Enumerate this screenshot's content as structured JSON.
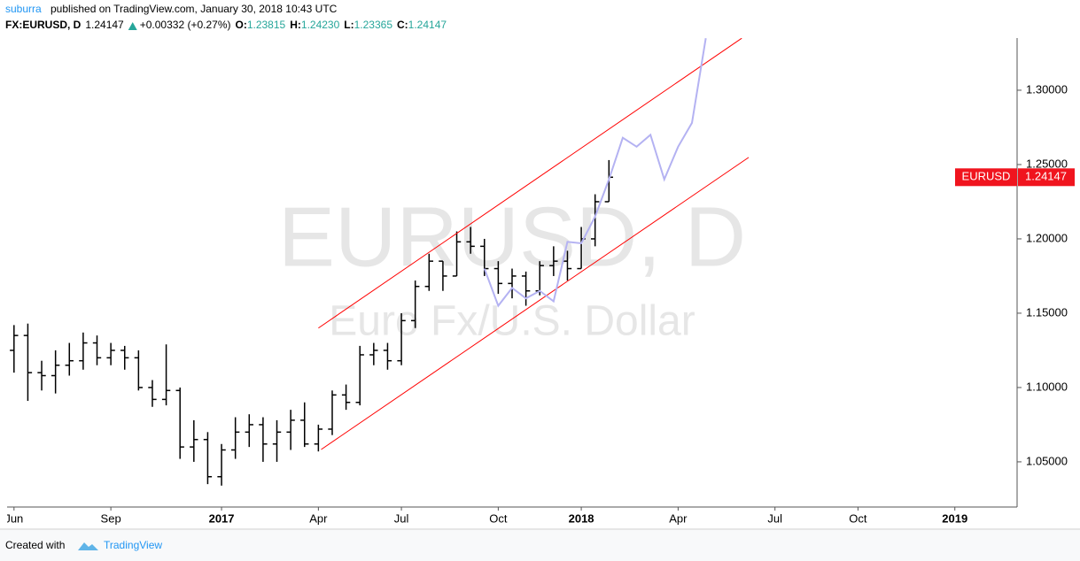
{
  "header": {
    "author": "suburra",
    "published": "published on TradingView.com, January 30, 2018 10:43 UTC",
    "symbol": "FX:EURUSD, D",
    "price": "1.24147",
    "change": "+0.00332 (+0.27%)",
    "ohlc": [
      {
        "label": "O:",
        "value": "1.23815"
      },
      {
        "label": "H:",
        "value": "1.24230"
      },
      {
        "label": "L:",
        "value": "1.23365"
      },
      {
        "label": "C:",
        "value": "1.24147"
      }
    ]
  },
  "footer": {
    "created": "Created with",
    "brand": "TradingView"
  },
  "chart_data": {
    "type": "ohlc",
    "watermark_title": "EURUSD, D",
    "watermark_subtitle": "Euro Fx/U.S. Dollar",
    "symbol_label": "EURUSD",
    "last_price": {
      "value": 1.24147,
      "label": "1.24147"
    },
    "tag_color": "#f0141e",
    "color": "#000000",
    "categories": [
      "Jun",
      null,
      null,
      null,
      null,
      null,
      null,
      "Sep",
      null,
      null,
      null,
      null,
      null,
      null,
      null,
      "2017",
      null,
      null,
      null,
      null,
      null,
      null,
      "Apr",
      null,
      null,
      null,
      null,
      null,
      "Jul",
      null,
      null,
      null,
      null,
      null,
      null,
      "Oct",
      null,
      null,
      null,
      null,
      null,
      "2018",
      null,
      null,
      null,
      null,
      null,
      null,
      "Apr",
      null,
      null,
      null,
      null,
      null,
      null,
      "Jul",
      null,
      null,
      null,
      null,
      null,
      "Oct",
      null,
      null,
      null,
      null,
      null,
      null,
      "2019",
      null,
      null,
      null,
      null
    ],
    "open": [
      1.125,
      1.135,
      1.11,
      1.108,
      1.115,
      1.118,
      1.13,
      1.12,
      1.125,
      1.12,
      1.1,
      1.092,
      1.098,
      1.06,
      1.065,
      1.04,
      1.058,
      1.07,
      1.075,
      1.062,
      1.07,
      1.078,
      1.062,
      1.072,
      1.095,
      1.09,
      1.122,
      1.125,
      1.118,
      1.145,
      1.168,
      1.185,
      1.175,
      1.198,
      1.195,
      1.18,
      1.17,
      1.175,
      1.165,
      1.182,
      1.185,
      1.18,
      1.2,
      1.225,
      null,
      null,
      null,
      null,
      null,
      null,
      null,
      null,
      null,
      null,
      null,
      null,
      null,
      null,
      null,
      null,
      null,
      null,
      null,
      null,
      null,
      null,
      null,
      null,
      null,
      null,
      null,
      null,
      null
    ],
    "high": [
      1.142,
      1.143,
      1.118,
      1.125,
      1.13,
      1.137,
      1.135,
      1.13,
      1.128,
      1.125,
      1.105,
      1.129,
      1.1,
      1.078,
      1.07,
      1.062,
      1.08,
      1.082,
      1.08,
      1.078,
      1.085,
      1.09,
      1.075,
      1.098,
      1.102,
      1.128,
      1.13,
      1.13,
      1.15,
      1.172,
      1.19,
      1.185,
      1.205,
      1.208,
      1.2,
      1.185,
      1.18,
      1.178,
      1.185,
      1.195,
      1.192,
      1.208,
      1.23,
      1.253,
      null,
      null,
      null,
      null,
      null,
      null,
      null,
      null,
      null,
      null,
      null,
      null,
      null,
      null,
      null,
      null,
      null,
      null,
      null,
      null,
      null,
      null,
      null,
      null,
      null,
      null,
      null,
      null,
      null
    ],
    "low": [
      1.11,
      1.091,
      1.098,
      1.096,
      1.108,
      1.112,
      1.115,
      1.115,
      1.112,
      1.098,
      1.087,
      1.088,
      1.052,
      1.05,
      1.035,
      1.034,
      1.052,
      1.06,
      1.05,
      1.05,
      1.058,
      1.06,
      1.057,
      1.068,
      1.085,
      1.088,
      1.115,
      1.112,
      1.115,
      1.14,
      1.165,
      1.165,
      1.175,
      1.19,
      1.175,
      1.163,
      1.16,
      1.155,
      1.162,
      1.175,
      1.172,
      1.18,
      1.195,
      1.225,
      null,
      null,
      null,
      null,
      null,
      null,
      null,
      null,
      null,
      null,
      null,
      null,
      null,
      null,
      null,
      null,
      null,
      null,
      null,
      null,
      null,
      null,
      null,
      null,
      null,
      null,
      null,
      null,
      null
    ],
    "close": [
      1.135,
      1.11,
      1.108,
      1.115,
      1.118,
      1.13,
      1.12,
      1.125,
      1.12,
      1.1,
      1.092,
      1.098,
      1.06,
      1.065,
      1.04,
      1.058,
      1.07,
      1.075,
      1.062,
      1.07,
      1.078,
      1.062,
      1.072,
      1.095,
      1.09,
      1.122,
      1.125,
      1.118,
      1.145,
      1.168,
      1.185,
      1.175,
      1.198,
      1.195,
      1.18,
      1.17,
      1.175,
      1.165,
      1.182,
      1.185,
      1.18,
      1.2,
      1.225,
      1.24147,
      null,
      null,
      null,
      null,
      null,
      null,
      null,
      null,
      null,
      null,
      null,
      null,
      null,
      null,
      null,
      null,
      null,
      null,
      null,
      null,
      null,
      null,
      null,
      null,
      null,
      null,
      null,
      null,
      null
    ],
    "projection": {
      "color": "#b4b2f2",
      "values": [
        null,
        null,
        null,
        null,
        null,
        null,
        null,
        null,
        null,
        null,
        null,
        null,
        null,
        null,
        null,
        null,
        null,
        null,
        null,
        null,
        null,
        null,
        null,
        null,
        null,
        null,
        null,
        null,
        null,
        null,
        null,
        null,
        null,
        null,
        1.18,
        1.155,
        1.167,
        1.16,
        1.165,
        1.158,
        1.198,
        1.197,
        1.215,
        1.24,
        1.268,
        1.262,
        1.27,
        1.24,
        1.262,
        1.278,
        1.335,
        null,
        null,
        null,
        null,
        null,
        null,
        null,
        null,
        null,
        null,
        null,
        null,
        null,
        null,
        null,
        null,
        null,
        null,
        null,
        null,
        null,
        null
      ]
    },
    "trendlines": [
      {
        "color": "#ff0000",
        "x": [
          22,
          52.6
        ],
        "values": [
          1.14,
          1.335
        ]
      },
      {
        "color": "#ff0000",
        "x": [
          22.2,
          53.1
        ],
        "values": [
          1.0583,
          1.2548
        ]
      }
    ],
    "ylim": [
      1.0196,
      1.3351
    ],
    "yticks": [
      {
        "value": 1.05,
        "label": "1.05000"
      },
      {
        "value": 1.1,
        "label": "1.10000"
      },
      {
        "value": 1.15,
        "label": "1.15000"
      },
      {
        "value": 1.2,
        "label": "1.20000"
      },
      {
        "value": 1.25,
        "label": "1.25000"
      },
      {
        "value": 1.3,
        "label": "1.30000"
      }
    ]
  }
}
